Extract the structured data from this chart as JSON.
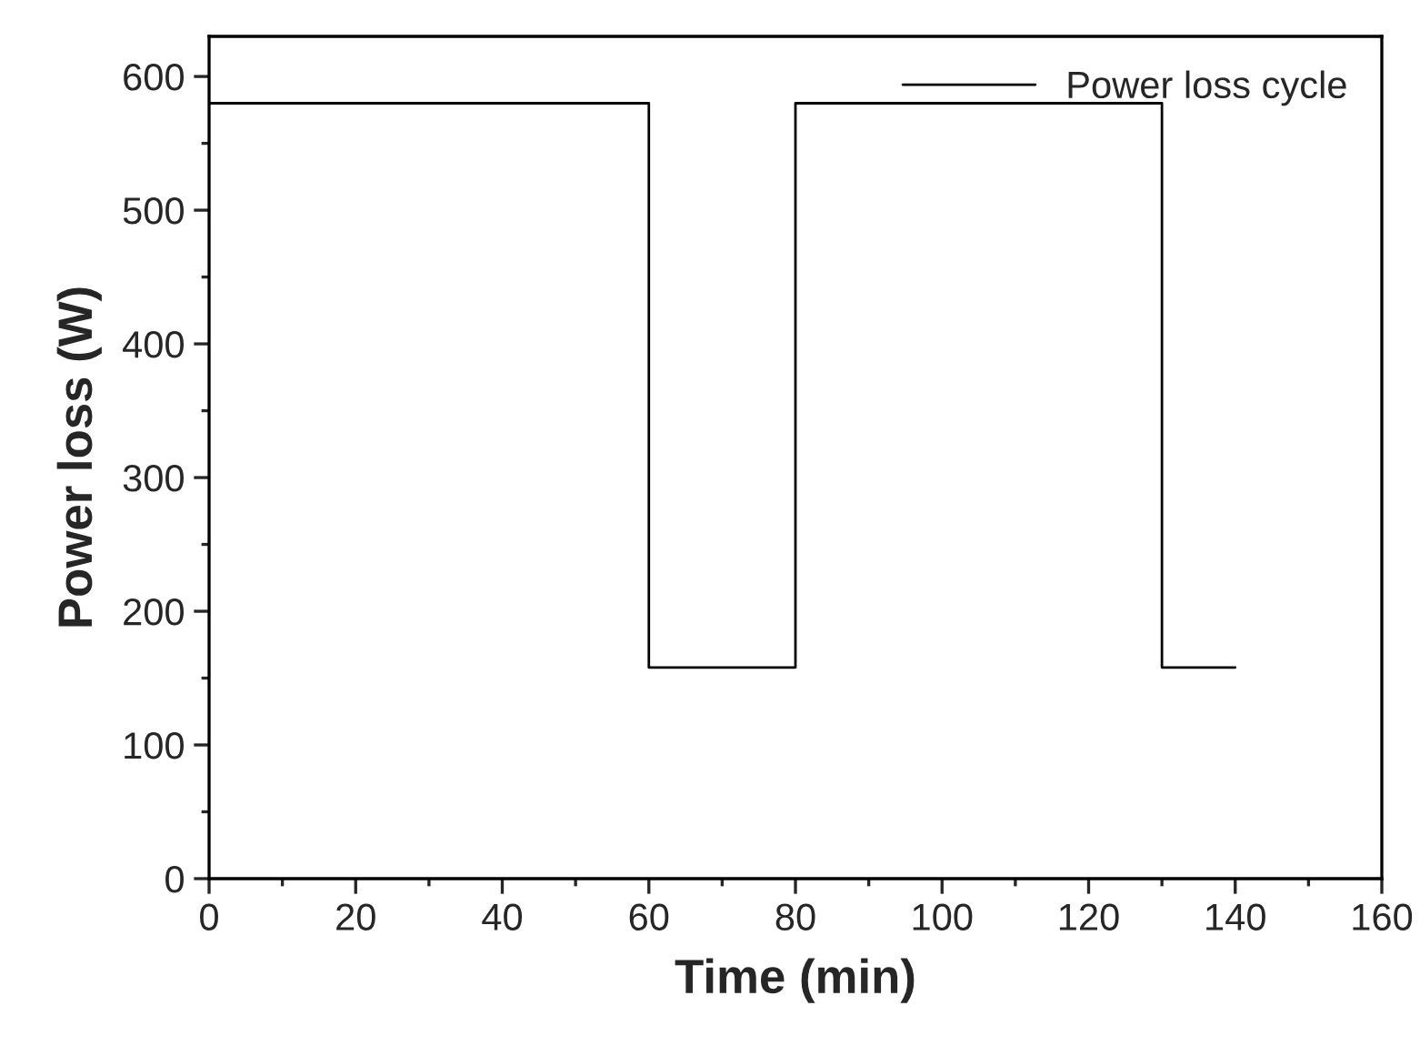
{
  "chart_data": {
    "type": "step",
    "xlabel": "Time (min)",
    "ylabel": "Power loss (W)",
    "x": [
      0,
      60,
      80,
      130,
      140
    ],
    "series": [
      {
        "name": "Power loss cycle",
        "color": "#000000",
        "values": [
          580,
          158,
          580,
          158,
          158
        ]
      }
    ],
    "xlim": [
      0,
      160
    ],
    "xticks": [
      0,
      20,
      40,
      60,
      80,
      100,
      120,
      140,
      160
    ],
    "ylim": [
      0,
      630
    ],
    "yticks": [
      0,
      100,
      200,
      300,
      400,
      500,
      600
    ],
    "grid": false,
    "legend": "top right"
  }
}
